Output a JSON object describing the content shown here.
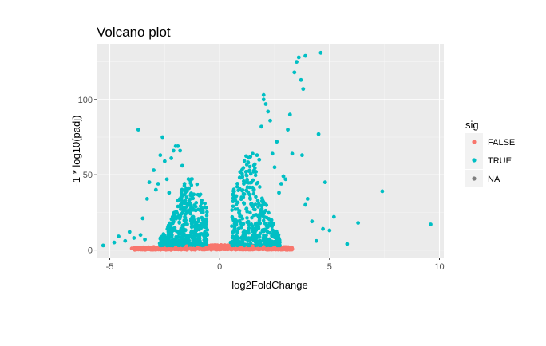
{
  "chart_data": {
    "type": "scatter",
    "title": "Volcano plot",
    "xlabel": "log2FoldChange",
    "ylabel": "-1 * log10(padj)",
    "xlim": [
      -5.6,
      10.2
    ],
    "ylim": [
      -5,
      137
    ],
    "x_ticks": [
      -5,
      0,
      5,
      10
    ],
    "y_ticks": [
      0,
      50,
      100
    ],
    "x_tick_labels": [
      "-5",
      "0",
      "5",
      "10"
    ],
    "y_tick_labels": [
      "0",
      "50",
      "100"
    ],
    "grid": true,
    "legend": {
      "title": "sig",
      "placement": "right",
      "entries": [
        {
          "name": "FALSE",
          "color": "#F8766D"
        },
        {
          "name": "TRUE",
          "color": "#00BFC4"
        },
        {
          "name": "NA",
          "color": "#7F7F7F"
        }
      ]
    },
    "series": [
      {
        "name": "TRUE",
        "color": "#00BFC4",
        "points": [
          [
            -5.3,
            3
          ],
          [
            -4.8,
            5
          ],
          [
            -4.6,
            9
          ],
          [
            -4.3,
            6
          ],
          [
            -4.1,
            12
          ],
          [
            -3.9,
            8
          ],
          [
            -3.7,
            80
          ],
          [
            -3.5,
            21
          ],
          [
            -3.3,
            34
          ],
          [
            -3.2,
            45
          ],
          [
            -3.0,
            53
          ],
          [
            -2.9,
            40
          ],
          [
            -2.8,
            44
          ],
          [
            -2.7,
            63
          ],
          [
            -2.6,
            75
          ],
          [
            -2.5,
            59
          ],
          [
            -2.4,
            47
          ],
          [
            -2.3,
            38
          ],
          [
            -2.2,
            61
          ],
          [
            -2.1,
            66
          ],
          [
            -2.0,
            69
          ],
          [
            -1.9,
            69
          ],
          [
            -1.8,
            66
          ],
          [
            -1.7,
            56
          ],
          [
            -1.6,
            44
          ],
          [
            -1.5,
            35
          ],
          [
            -1.4,
            41
          ],
          [
            -1.3,
            28
          ],
          [
            -3.6,
            10
          ],
          [
            -3.4,
            7
          ],
          [
            -1.2,
            22
          ],
          [
            -1.1,
            15
          ],
          [
            -1.0,
            10
          ],
          [
            -0.9,
            6
          ],
          [
            -0.8,
            4
          ],
          [
            0.5,
            5
          ],
          [
            0.6,
            9
          ],
          [
            0.7,
            14
          ],
          [
            0.8,
            19
          ],
          [
            0.9,
            26
          ],
          [
            1.0,
            35
          ],
          [
            1.1,
            44
          ],
          [
            1.2,
            52
          ],
          [
            1.3,
            58
          ],
          [
            1.4,
            62
          ],
          [
            1.5,
            64
          ],
          [
            1.6,
            57
          ],
          [
            1.7,
            63
          ],
          [
            1.8,
            60
          ],
          [
            1.9,
            82
          ],
          [
            2.0,
            100
          ],
          [
            2.0,
            103
          ],
          [
            2.1,
            97
          ],
          [
            2.2,
            92
          ],
          [
            2.3,
            86
          ],
          [
            2.4,
            64
          ],
          [
            2.5,
            55
          ],
          [
            2.6,
            72
          ],
          [
            2.7,
            38
          ],
          [
            2.8,
            44
          ],
          [
            2.9,
            49
          ],
          [
            3.0,
            47
          ],
          [
            3.1,
            80
          ],
          [
            3.2,
            90
          ],
          [
            3.3,
            64
          ],
          [
            3.4,
            118
          ],
          [
            3.5,
            125
          ],
          [
            3.6,
            128
          ],
          [
            3.7,
            113
          ],
          [
            3.75,
            63
          ],
          [
            3.8,
            107
          ],
          [
            3.9,
            129
          ],
          [
            3.9,
            30
          ],
          [
            4.0,
            34
          ],
          [
            4.2,
            19
          ],
          [
            4.4,
            6
          ],
          [
            4.5,
            77
          ],
          [
            4.6,
            131
          ],
          [
            4.7,
            14
          ],
          [
            4.8,
            45
          ],
          [
            5.0,
            13
          ],
          [
            5.2,
            22
          ],
          [
            5.8,
            4
          ],
          [
            6.3,
            18
          ],
          [
            7.4,
            39
          ],
          [
            9.6,
            17
          ]
        ]
      },
      {
        "name": "FALSE",
        "color": "#F8766D",
        "points": [
          [
            -4.0,
            1
          ],
          [
            -3.5,
            1.5
          ],
          [
            -3.0,
            2
          ],
          [
            -2.5,
            1
          ],
          [
            -2.0,
            1.5
          ],
          [
            -1.5,
            2.5
          ],
          [
            -1.0,
            1.5
          ],
          [
            -0.5,
            0.8
          ],
          [
            0.0,
            0.3
          ],
          [
            0.5,
            0.8
          ],
          [
            1.0,
            1.5
          ],
          [
            1.5,
            2.5
          ],
          [
            2.0,
            2
          ],
          [
            2.5,
            1.5
          ],
          [
            3.0,
            1
          ],
          [
            3.3,
            0.8
          ]
        ]
      }
    ]
  }
}
